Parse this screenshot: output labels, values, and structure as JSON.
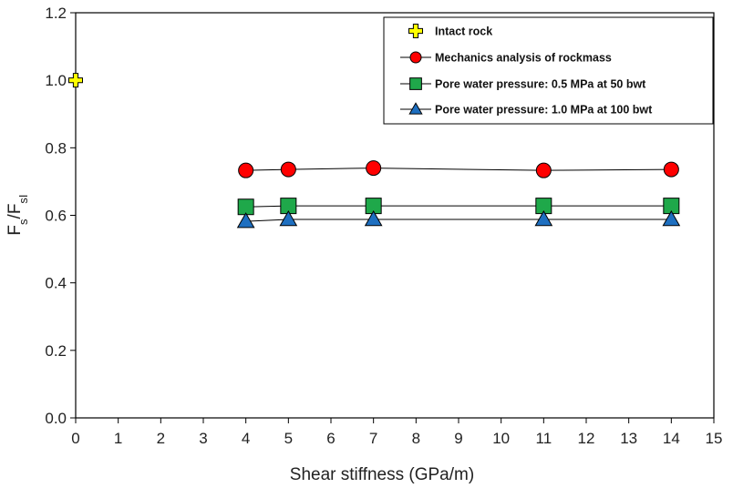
{
  "chart_data": {
    "type": "line",
    "xlabel": "Shear stiffness (GPa/m)",
    "ylabel_main": "F",
    "ylabel_sub1": "s",
    "ylabel_sep": "/F",
    "ylabel_sub2": "sI",
    "xlim": [
      0,
      15
    ],
    "ylim": [
      0,
      1.2
    ],
    "x_ticks": [
      "0",
      "1",
      "2",
      "3",
      "4",
      "5",
      "6",
      "7",
      "8",
      "9",
      "10",
      "11",
      "12",
      "13",
      "14",
      "15"
    ],
    "y_ticks": [
      "0.0",
      "0.2",
      "0.4",
      "0.6",
      "0.8",
      "1.0",
      "1.2"
    ],
    "grid": false,
    "legend_position": "top-right",
    "series": [
      {
        "name": "Intact rock",
        "marker": "cross",
        "color": "#ffff00",
        "x": [
          0
        ],
        "y": [
          1.0
        ]
      },
      {
        "name": "Mechanics analysis of rockmass",
        "marker": "circle",
        "color": "#ff0000",
        "x": [
          4,
          5,
          7,
          11,
          14
        ],
        "y": [
          0.733,
          0.736,
          0.74,
          0.733,
          0.736
        ]
      },
      {
        "name": "Pore water pressure: 0.5 MPa at 50 bwt",
        "marker": "square",
        "color": "#1fa84a",
        "x": [
          4,
          5,
          7,
          11,
          14
        ],
        "y": [
          0.625,
          0.628,
          0.628,
          0.628,
          0.628
        ]
      },
      {
        "name": "Pore water pressure: 1.0 MPa at 100 bwt",
        "marker": "triangle",
        "color": "#1e6fc0",
        "x": [
          4,
          5,
          7,
          11,
          14
        ],
        "y": [
          0.582,
          0.588,
          0.588,
          0.588,
          0.588
        ]
      }
    ]
  }
}
